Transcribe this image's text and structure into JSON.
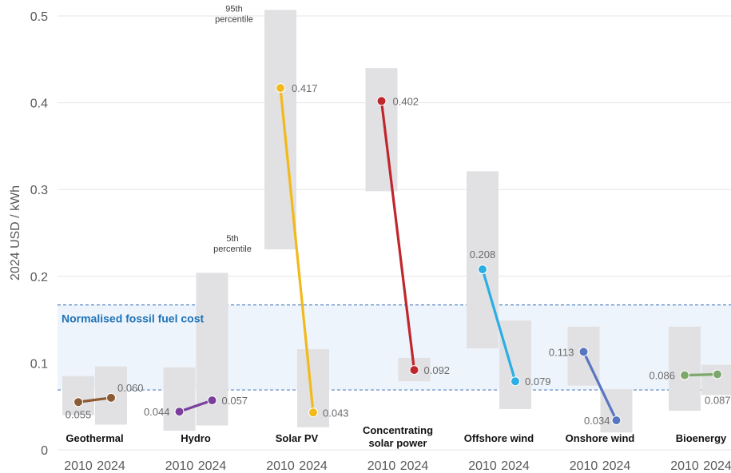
{
  "chart_data": {
    "type": "line",
    "ylabel": "2024 USD / kWh",
    "ylim": [
      0,
      0.5
    ],
    "yticks": [
      "0",
      "0.1",
      "0.2",
      "0.3",
      "0.4",
      "0.5"
    ],
    "year_labels": [
      "2010",
      "2024"
    ],
    "band": {
      "label": "Normalised fossil fuel cost",
      "low": 0.069,
      "high": 0.167,
      "fill": "#eef4fb",
      "line_color": "#5b87c5"
    },
    "percentile_labels": {
      "p95": [
        "95th",
        "percentile"
      ],
      "p5": [
        "5th",
        "percentile"
      ]
    },
    "series": [
      {
        "name": "Geothermal",
        "lines": [
          "Geothermal"
        ],
        "color": "#8c5a33",
        "v2010": 0.055,
        "v2024": 0.06,
        "l2010": "0.055",
        "l2024": "0.060",
        "r2010": [
          0.04,
          0.085
        ],
        "r2024": [
          0.029,
          0.096
        ]
      },
      {
        "name": "Hydro",
        "lines": [
          "Hydro"
        ],
        "color": "#7a3f9c",
        "v2010": 0.044,
        "v2024": 0.057,
        "l2010": "0.044",
        "l2024": "0.057",
        "r2010": [
          0.022,
          0.095
        ],
        "r2024": [
          0.028,
          0.204
        ]
      },
      {
        "name": "Solar PV",
        "lines": [
          "Solar PV"
        ],
        "color": "#f2b91a",
        "v2010": 0.417,
        "v2024": 0.043,
        "l2010": "0.417",
        "l2024": "0.043",
        "r2010": [
          0.231,
          0.507
        ],
        "r2024": [
          0.026,
          0.116
        ]
      },
      {
        "name": "Concentrating solar power",
        "lines": [
          "Concentrating",
          "solar power"
        ],
        "color": "#c0262d",
        "v2010": 0.402,
        "v2024": 0.092,
        "l2010": "0.402",
        "l2024": "0.092",
        "r2010": [
          0.298,
          0.44
        ],
        "r2024": [
          0.079,
          0.106
        ]
      },
      {
        "name": "Offshore wind",
        "lines": [
          "Offshore wind"
        ],
        "color": "#2aaee3",
        "v2010": 0.208,
        "v2024": 0.079,
        "l2010": "0.208",
        "l2024": "0.079",
        "r2010": [
          0.117,
          0.321
        ],
        "r2024": [
          0.047,
          0.149
        ]
      },
      {
        "name": "Onshore wind",
        "lines": [
          "Onshore wind"
        ],
        "color": "#5876c0",
        "v2010": 0.113,
        "v2024": 0.034,
        "l2010": "0.113",
        "l2024": "0.034",
        "r2010": [
          0.074,
          0.142
        ],
        "r2024": [
          0.02,
          0.07
        ]
      },
      {
        "name": "Bioenergy",
        "lines": [
          "Bioenergy"
        ],
        "color": "#7ea86b",
        "v2010": 0.086,
        "v2024": 0.087,
        "l2010": "0.086",
        "l2024": "0.087",
        "r2010": [
          0.045,
          0.142
        ],
        "r2024": [
          0.063,
          0.098
        ]
      }
    ]
  }
}
